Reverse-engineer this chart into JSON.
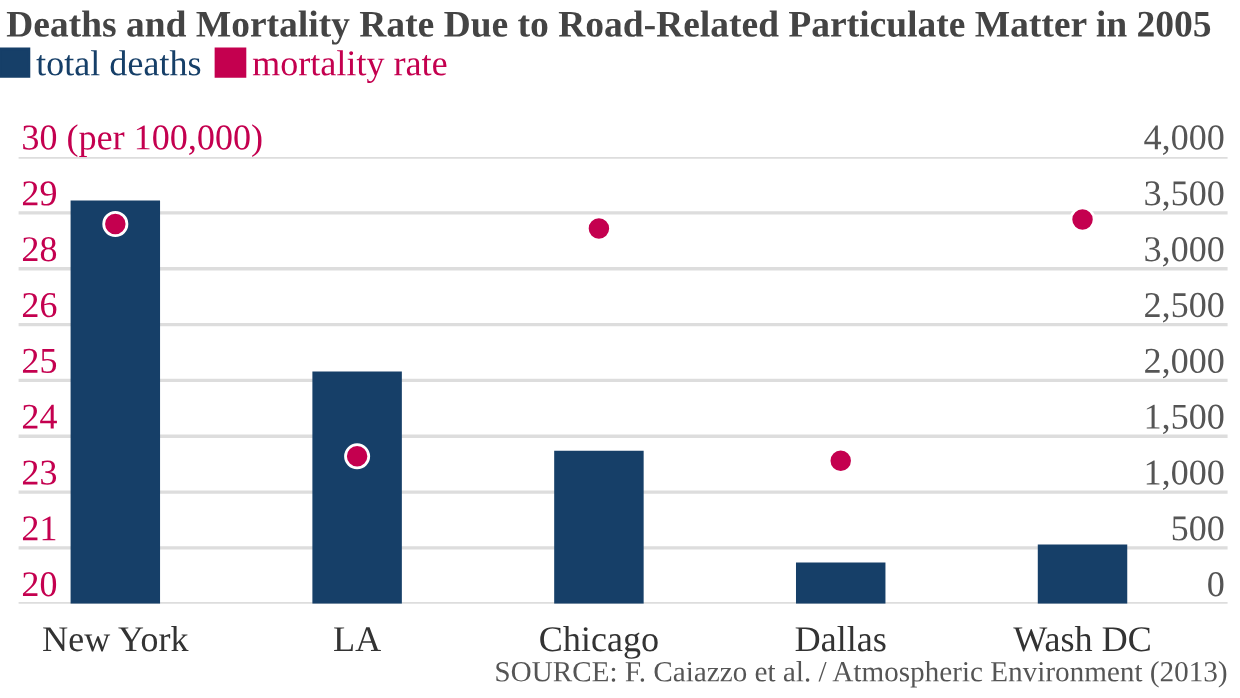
{
  "chart_data": {
    "type": "bar",
    "title": "Deaths and Mortality Rate Due to Road-Related Particulate Matter in 2005",
    "categories": [
      "New York",
      "LA",
      "Chicago",
      "Dallas",
      "Wash DC"
    ],
    "series": [
      {
        "name": "total deaths",
        "color": "#163f68",
        "axis": "y2",
        "values": [
          3610,
          2080,
          1370,
          370,
          530
        ]
      },
      {
        "name": "mortality rate",
        "color": "#c4004f",
        "type": "scatter",
        "axis": "y",
        "values": [
          28.5,
          23.3,
          28.4,
          23.2,
          28.6
        ]
      }
    ],
    "ylim": [
      20,
      30
    ],
    "yticks": [
      20,
      {
        "value": 21.25,
        "label": "21"
      },
      {
        "value": 22.5,
        "label": "23"
      },
      {
        "value": 23.75,
        "label": "24"
      },
      25,
      {
        "value": 26.25,
        "label": "26"
      },
      {
        "value": 27.5,
        "label": "28"
      },
      {
        "value": 28.75,
        "label": "29"
      },
      {
        "value": 30,
        "label": "30 (per 100,000)"
      }
    ],
    "y2lim": [
      0,
      4000
    ],
    "y2ticks": [
      0,
      500,
      {
        "value": 1000,
        "label": "1,000"
      },
      {
        "value": 1500,
        "label": "1,500"
      },
      {
        "value": 2000,
        "label": "2,000"
      },
      {
        "value": 2500,
        "label": "2,500"
      },
      {
        "value": 3000,
        "label": "3,000"
      },
      {
        "value": 3500,
        "label": "3,500"
      },
      {
        "value": 4000,
        "label": "4,000"
      }
    ],
    "grid": "y",
    "legend": "top left",
    "marker": "circle",
    "annotations": [
      "SOURCE: F. Caiazzo et al. / Atmospheric Environment (2013)"
    ]
  }
}
